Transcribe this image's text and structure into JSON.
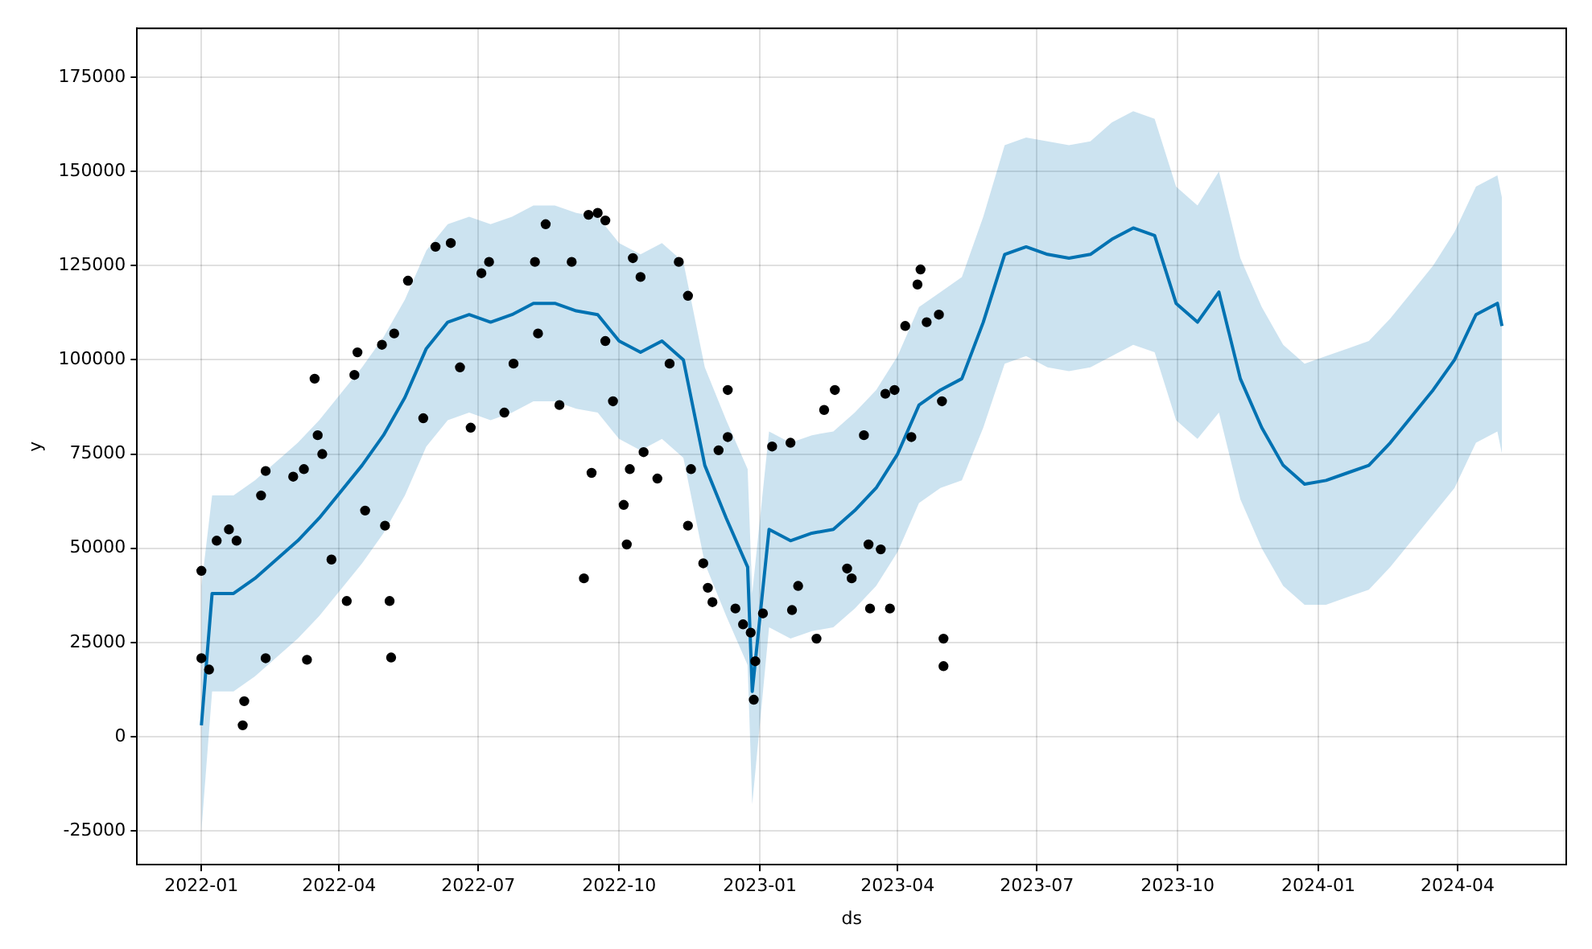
{
  "chart_data": {
    "type": "line",
    "xlabel": "ds",
    "ylabel": "y",
    "xlim": [
      "2021-11-20",
      "2024-06-11"
    ],
    "ylim": [
      -34000,
      188000
    ],
    "xticks": [
      {
        "value": "2022-01-01",
        "label": "2022-01"
      },
      {
        "value": "2022-04-01",
        "label": "2022-04"
      },
      {
        "value": "2022-07-01",
        "label": "2022-07"
      },
      {
        "value": "2022-10-01",
        "label": "2022-10"
      },
      {
        "value": "2023-01-01",
        "label": "2023-01"
      },
      {
        "value": "2023-04-01",
        "label": "2023-04"
      },
      {
        "value": "2023-07-01",
        "label": "2023-07"
      },
      {
        "value": "2023-10-01",
        "label": "2023-10"
      },
      {
        "value": "2024-01-01",
        "label": "2024-01"
      },
      {
        "value": "2024-04-01",
        "label": "2024-04"
      }
    ],
    "yticks": [
      -25000,
      0,
      25000,
      50000,
      75000,
      100000,
      125000,
      150000,
      175000
    ],
    "grid": true,
    "legend": false,
    "series": [
      {
        "color": "#0072b2",
        "marker": "none",
        "line_style": "solid",
        "x": [
          "2022-01-01",
          "2022-01-08",
          "2022-01-22",
          "2022-02-05",
          "2022-02-19",
          "2022-03-05",
          "2022-03-19",
          "2022-04-02",
          "2022-04-16",
          "2022-04-30",
          "2022-05-14",
          "2022-05-28",
          "2022-06-11",
          "2022-06-25",
          "2022-07-09",
          "2022-07-23",
          "2022-08-06",
          "2022-08-20",
          "2022-09-03",
          "2022-09-17",
          "2022-10-01",
          "2022-10-15",
          "2022-10-29",
          "2022-11-12",
          "2022-11-26",
          "2022-12-10",
          "2022-12-24",
          "2022-12-27",
          "2023-01-07",
          "2023-01-21",
          "2023-02-04",
          "2023-02-18",
          "2023-03-04",
          "2023-03-18",
          "2023-04-01",
          "2023-04-15",
          "2023-04-29",
          "2023-05-13",
          "2023-05-27",
          "2023-06-10",
          "2023-06-24",
          "2023-07-08",
          "2023-07-22",
          "2023-08-05",
          "2023-08-19",
          "2023-09-02",
          "2023-09-16",
          "2023-09-30",
          "2023-10-14",
          "2023-10-28",
          "2023-11-11",
          "2023-11-25",
          "2023-12-09",
          "2023-12-23",
          "2024-01-06",
          "2024-01-20",
          "2024-02-03",
          "2024-02-17",
          "2024-03-02",
          "2024-03-16",
          "2024-03-30",
          "2024-04-13",
          "2024-04-27",
          "2024-04-30"
        ],
        "values": [
          3000,
          38000,
          38000,
          42000,
          47000,
          52000,
          58000,
          65000,
          72000,
          80000,
          90000,
          103000,
          110000,
          112000,
          110000,
          112000,
          115000,
          115000,
          113000,
          112000,
          105000,
          102000,
          105000,
          100000,
          72000,
          58000,
          45000,
          12000,
          55000,
          52000,
          54000,
          55000,
          60000,
          66000,
          75000,
          88000,
          92000,
          95000,
          110000,
          128000,
          130000,
          128000,
          127000,
          128000,
          132000,
          135000,
          133000,
          115000,
          110000,
          118000,
          95000,
          82000,
          72000,
          67000,
          68000,
          70000,
          72000,
          78000,
          85000,
          92000,
          100000,
          112000,
          115000,
          109000
        ],
        "lower": [
          -25000,
          12000,
          12000,
          16000,
          21000,
          26000,
          32000,
          39000,
          46000,
          54000,
          64000,
          77000,
          84000,
          86000,
          84000,
          86000,
          89000,
          89000,
          87000,
          86000,
          79000,
          76000,
          79000,
          74000,
          46000,
          32000,
          19000,
          -18000,
          29000,
          26000,
          28000,
          29000,
          34000,
          40000,
          49000,
          62000,
          66000,
          68000,
          82000,
          99000,
          101000,
          98000,
          97000,
          98000,
          101000,
          104000,
          102000,
          84000,
          79000,
          86000,
          63000,
          50000,
          40000,
          35000,
          35000,
          37000,
          39000,
          45000,
          52000,
          59000,
          66000,
          78000,
          81000,
          75000
        ],
        "upper": [
          40000,
          64000,
          64000,
          68000,
          73000,
          78000,
          84000,
          91000,
          98000,
          106000,
          116000,
          129000,
          136000,
          138000,
          136000,
          138000,
          141000,
          141000,
          139000,
          138000,
          131000,
          128000,
          131000,
          126000,
          98000,
          84000,
          71000,
          38000,
          81000,
          78000,
          80000,
          81000,
          86000,
          92000,
          101000,
          114000,
          118000,
          122000,
          138000,
          157000,
          159000,
          158000,
          157000,
          158000,
          163000,
          166000,
          164000,
          146000,
          141000,
          150000,
          127000,
          114000,
          104000,
          99000,
          101000,
          103000,
          105000,
          111000,
          118000,
          125000,
          134000,
          146000,
          149000,
          143000
        ]
      },
      {
        "type": "scatter",
        "color": "#000000",
        "marker": "circle",
        "x": [
          "2022-01-01",
          "2022-01-01",
          "2022-01-06",
          "2022-01-11",
          "2022-01-19",
          "2022-01-24",
          "2022-01-28",
          "2022-01-29",
          "2022-02-09",
          "2022-02-12",
          "2022-02-12",
          "2022-03-02",
          "2022-03-09",
          "2022-03-11",
          "2022-03-16",
          "2022-03-18",
          "2022-03-21",
          "2022-03-27",
          "2022-04-06",
          "2022-04-11",
          "2022-04-13",
          "2022-04-18",
          "2022-04-29",
          "2022-05-01",
          "2022-05-04",
          "2022-05-05",
          "2022-05-07",
          "2022-05-16",
          "2022-05-26",
          "2022-06-03",
          "2022-06-13",
          "2022-06-19",
          "2022-06-26",
          "2022-07-03",
          "2022-07-08",
          "2022-07-18",
          "2022-07-24",
          "2022-08-07",
          "2022-08-09",
          "2022-08-14",
          "2022-08-23",
          "2022-08-31",
          "2022-09-08",
          "2022-09-11",
          "2022-09-13",
          "2022-09-17",
          "2022-09-22",
          "2022-09-22",
          "2022-09-27",
          "2022-10-04",
          "2022-10-06",
          "2022-10-08",
          "2022-10-10",
          "2022-10-15",
          "2022-10-17",
          "2022-10-26",
          "2022-11-03",
          "2022-11-09",
          "2022-11-15",
          "2022-11-15",
          "2022-11-17",
          "2022-11-25",
          "2022-11-28",
          "2022-12-01",
          "2022-12-05",
          "2022-12-11",
          "2022-12-11",
          "2022-12-16",
          "2022-12-21",
          "2022-12-26",
          "2022-12-28",
          "2022-12-29",
          "2023-01-03",
          "2023-01-09",
          "2023-01-21",
          "2023-01-22",
          "2023-01-26",
          "2023-02-07",
          "2023-02-12",
          "2023-02-19",
          "2023-02-27",
          "2023-03-02",
          "2023-03-10",
          "2023-03-13",
          "2023-03-14",
          "2023-03-21",
          "2023-03-24",
          "2023-03-27",
          "2023-03-30",
          "2023-04-06",
          "2023-04-10",
          "2023-04-14",
          "2023-04-16",
          "2023-04-20",
          "2023-04-28",
          "2023-04-30",
          "2023-05-01",
          "2023-05-01"
        ],
        "values": [
          20800,
          44000,
          17800,
          52000,
          55000,
          52000,
          3000,
          9400,
          64000,
          70500,
          20800,
          69000,
          71000,
          20400,
          95000,
          80000,
          75000,
          47000,
          36000,
          96000,
          102000,
          60000,
          104000,
          56000,
          36000,
          21000,
          107000,
          121000,
          84500,
          130000,
          131000,
          98000,
          82000,
          123000,
          126000,
          86000,
          99000,
          126000,
          107000,
          136000,
          88000,
          126000,
          42000,
          138500,
          70000,
          139000,
          137000,
          105000,
          89000,
          61500,
          51000,
          71000,
          127000,
          122000,
          75500,
          68500,
          99000,
          126000,
          117000,
          56000,
          71000,
          46000,
          39500,
          35700,
          76000,
          92000,
          79500,
          34000,
          29800,
          27600,
          9800,
          20000,
          32700,
          77000,
          78000,
          33600,
          40000,
          26000,
          86700,
          92000,
          44600,
          42000,
          80000,
          51000,
          34000,
          49700,
          91000,
          34000,
          92000,
          109000,
          79500,
          120000,
          124000,
          110000,
          112000,
          89000,
          26000,
          18700
        ]
      }
    ]
  }
}
